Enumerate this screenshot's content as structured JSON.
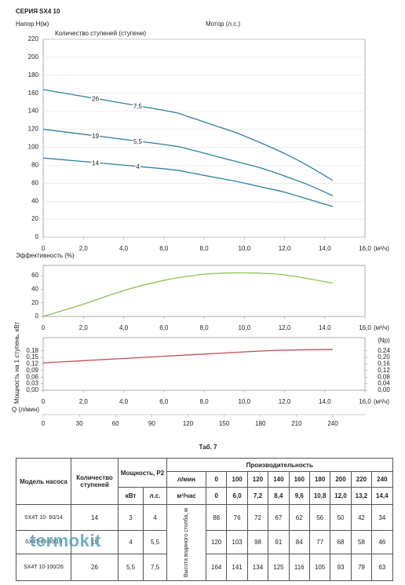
{
  "chart_data": [
    {
      "type": "line",
      "title": "СЕРИЯ SX4 10",
      "ylabel": "Напор H(м)",
      "stages_label": "Количество ступеней (ступени)",
      "motor_label": "Мотор (л.с.)",
      "xlabel": "(м³/ч)",
      "x": [
        0,
        6.0,
        7.2,
        8.4,
        9.6,
        10.8,
        12.0,
        13.2,
        14.4
      ],
      "series": [
        {
          "stages": "26",
          "motor": "7,5",
          "color": "#2e7f9f",
          "values": [
            164,
            141,
            134,
            125,
            116,
            105,
            93,
            79,
            63
          ]
        },
        {
          "stages": "19",
          "motor": "5,5",
          "color": "#2e7f9f",
          "values": [
            120,
            103,
            98,
            91,
            84,
            77,
            68,
            58,
            46
          ]
        },
        {
          "stages": "14",
          "motor": "4",
          "color": "#2e7f9f",
          "values": [
            88,
            76,
            72,
            67,
            62,
            56,
            50,
            42,
            34
          ]
        }
      ],
      "xlim": [
        0,
        16
      ],
      "xticks": [
        0,
        {
          "value": 2,
          "label": "2,0"
        },
        {
          "value": 4,
          "label": "4,0"
        },
        {
          "value": 6,
          "label": "6,0"
        },
        {
          "value": 8,
          "label": "8,0"
        },
        {
          "value": 10,
          "label": "10,0"
        },
        {
          "value": 12,
          "label": "12,0"
        },
        {
          "value": 14,
          "label": "14,0"
        },
        {
          "value": 16,
          "label": "16,0"
        }
      ],
      "ylim": [
        0,
        220
      ],
      "yticks": [
        0,
        20,
        40,
        60,
        80,
        100,
        120,
        140,
        160,
        180,
        200,
        220
      ],
      "grid": true
    },
    {
      "type": "line",
      "ylabel": "Эффективность (%)",
      "xlabel": "(м³/ч)",
      "x": [
        0,
        2,
        4,
        6,
        8,
        10,
        12,
        14.4
      ],
      "series": [
        {
          "color": "#8fbf4f",
          "values": [
            0,
            18,
            38,
            53,
            62,
            64,
            61,
            49
          ]
        }
      ],
      "xlim": [
        0,
        16
      ],
      "xticks": [
        0,
        {
          "value": 2,
          "label": "2,0"
        },
        {
          "value": 4,
          "label": "4,0"
        },
        {
          "value": 6,
          "label": "6,0"
        },
        {
          "value": 8,
          "label": "8,0"
        },
        {
          "value": 10,
          "label": "10,0"
        },
        {
          "value": 12,
          "label": "12,0"
        },
        {
          "value": 14,
          "label": "14,0"
        },
        {
          "value": 16,
          "label": "16,0"
        }
      ],
      "ylim": [
        0,
        75
      ],
      "yticks": [
        0,
        20,
        40,
        60
      ],
      "grid": false
    },
    {
      "type": "line",
      "ylabel": "Мощность на 1 ступень, кВт",
      "y2label": "(Np)",
      "xlabel": "(м³/ч)",
      "x": [
        0,
        2,
        4,
        6,
        8,
        10,
        12,
        14.4
      ],
      "series": [
        {
          "color": "#c0504d",
          "values": [
            0.125,
            0.135,
            0.145,
            0.155,
            0.165,
            0.175,
            0.183,
            0.186
          ]
        }
      ],
      "xlim": [
        0,
        16
      ],
      "xticks": [
        0,
        {
          "value": 2,
          "label": "2,0"
        },
        {
          "value": 4,
          "label": "4,0"
        },
        {
          "value": 6,
          "label": "6,0"
        },
        {
          "value": 8,
          "label": "8,0"
        },
        {
          "value": 10,
          "label": "10,0"
        },
        {
          "value": 12,
          "label": "12,0"
        },
        {
          "value": 14,
          "label": "14,0"
        },
        {
          "value": 16,
          "label": "16,0"
        }
      ],
      "ylim": [
        0,
        0.24
      ],
      "yticks": [
        {
          "value": 0,
          "label": "0,00"
        },
        {
          "value": 0.03,
          "label": "0,03"
        },
        {
          "value": 0.06,
          "label": "0,06"
        },
        {
          "value": 0.09,
          "label": "0,09"
        },
        {
          "value": 0.12,
          "label": "0,12"
        },
        {
          "value": 0.15,
          "label": "0,15"
        },
        {
          "value": 0.18,
          "label": "0,18"
        }
      ],
      "y2lim": [
        0,
        0.32
      ],
      "y2ticks": [
        {
          "value": 0,
          "label": "0,00"
        },
        {
          "value": 0.04,
          "label": "0,04"
        },
        {
          "value": 0.08,
          "label": "0,08"
        },
        {
          "value": 0.12,
          "label": "0,12"
        },
        {
          "value": 0.16,
          "label": "0,16"
        },
        {
          "value": 0.2,
          "label": "0,20"
        },
        {
          "value": 0.24,
          "label": "0,24"
        }
      ],
      "qlabel": "Q (л/мин)",
      "qlim": [
        0,
        266.67
      ],
      "qticks": [
        0,
        30,
        60,
        90,
        120,
        150,
        180,
        210,
        240
      ],
      "grid": false
    }
  ],
  "table": {
    "caption": "Таб. 7",
    "headers": {
      "model": "Модель насоса",
      "stages": "Количество ступеней",
      "power": "Мощность, P2",
      "kw": "кВт",
      "hp": "л.с.",
      "lpm": "л/мин",
      "m3h": "м³/час",
      "capacity": "Производительность",
      "head": "Высота водяного столба, м"
    },
    "flow_lpm": [
      0,
      100,
      120,
      140,
      160,
      180,
      200,
      220,
      240
    ],
    "flow_m3h": [
      0,
      "6,0",
      "7,2",
      "8,4",
      "9,6",
      "10,8",
      "12,0",
      "13,2",
      "14,4"
    ],
    "rows": [
      {
        "model": "SX4T 10- 60/14",
        "stages": 14,
        "kw": 3,
        "hp": 4,
        "heads": [
          88,
          76,
          72,
          67,
          62,
          56,
          50,
          42,
          34
        ]
      },
      {
        "model": "SX4T 10-80/19",
        "stages": 19,
        "kw": 4,
        "hp": "5,5",
        "heads": [
          120,
          103,
          98,
          91,
          84,
          77,
          68,
          58,
          46
        ]
      },
      {
        "model": "SX4T 10-100/26",
        "stages": 26,
        "kw": "5,5",
        "hp": "7,5",
        "heads": [
          164,
          141,
          134,
          125,
          116,
          105,
          93,
          79,
          63
        ]
      }
    ]
  },
  "watermark": "termokit"
}
